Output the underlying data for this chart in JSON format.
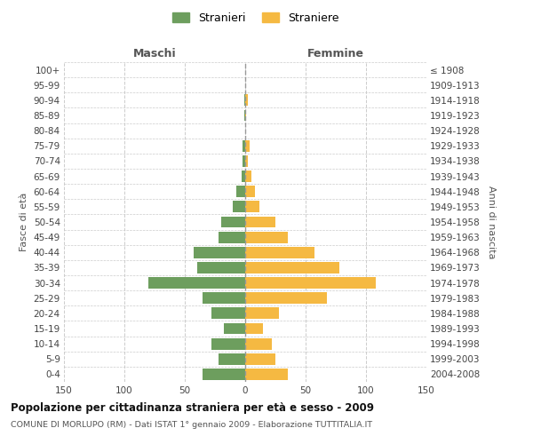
{
  "age_groups": [
    "0-4",
    "5-9",
    "10-14",
    "15-19",
    "20-24",
    "25-29",
    "30-34",
    "35-39",
    "40-44",
    "45-49",
    "50-54",
    "55-59",
    "60-64",
    "65-69",
    "70-74",
    "75-79",
    "80-84",
    "85-89",
    "90-94",
    "95-99",
    "100+"
  ],
  "birth_years": [
    "2004-2008",
    "1999-2003",
    "1994-1998",
    "1989-1993",
    "1984-1988",
    "1979-1983",
    "1974-1978",
    "1969-1973",
    "1964-1968",
    "1959-1963",
    "1954-1958",
    "1949-1953",
    "1944-1948",
    "1939-1943",
    "1934-1938",
    "1929-1933",
    "1924-1928",
    "1919-1923",
    "1914-1918",
    "1909-1913",
    "≤ 1908"
  ],
  "maschi": [
    35,
    22,
    28,
    18,
    28,
    35,
    80,
    40,
    43,
    22,
    20,
    10,
    7,
    3,
    2,
    2,
    0,
    1,
    1,
    0,
    0
  ],
  "femmine": [
    35,
    25,
    22,
    15,
    28,
    68,
    108,
    78,
    57,
    35,
    25,
    12,
    8,
    5,
    2,
    4,
    0,
    1,
    2,
    0,
    0
  ],
  "maschi_color": "#6d9e5e",
  "femmine_color": "#f5b942",
  "grid_color": "#cccccc",
  "title": "Popolazione per cittadinanza straniera per età e sesso - 2009",
  "subtitle": "COMUNE DI MORLUPO (RM) - Dati ISTAT 1° gennaio 2009 - Elaborazione TUTTITALIA.IT",
  "label_maschi": "Maschi",
  "label_femmine": "Femmine",
  "ylabel_left": "Fasce di età",
  "ylabel_right": "Anni di nascita",
  "legend_maschi": "Stranieri",
  "legend_femmine": "Straniere",
  "xlim": 150,
  "background_color": "#ffffff",
  "bar_height": 0.75
}
